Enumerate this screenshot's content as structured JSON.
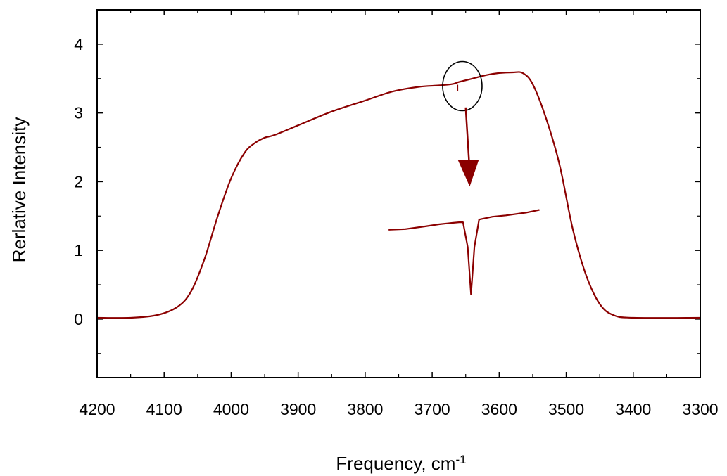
{
  "chart_data": {
    "type": "line",
    "title": "",
    "xlabel": "Frequency, cm",
    "xlabel_superscript": "-1",
    "ylabel": "Rerlative Intensity",
    "xlim": [
      4200,
      3300
    ],
    "ylim": [
      -0.85,
      4.5
    ],
    "x_reversed": true,
    "grid": false,
    "x_ticks": [
      4200,
      4100,
      4000,
      3900,
      3800,
      3700,
      3600,
      3500,
      3400,
      3300
    ],
    "x_tick_labels": [
      "4200",
      "4100",
      "4000",
      "3900",
      "3800",
      "3700",
      "3600",
      "3500",
      "3400",
      "3300"
    ],
    "y_ticks": [
      0,
      1,
      2,
      3,
      4
    ],
    "y_tick_labels": [
      "0",
      "1",
      "2",
      "3",
      "4"
    ],
    "line_color": "#8b0000",
    "annotation_color": "#000000",
    "series": [
      {
        "x": [
          4200,
          4150,
          4110,
          4080,
          4060,
          4040,
          4020,
          4000,
          3980,
          3965,
          3950,
          3935,
          3900,
          3850,
          3800,
          3760,
          3720,
          3690,
          3670,
          3660,
          3640,
          3620,
          3600,
          3580,
          3565,
          3550,
          3530,
          3510,
          3490,
          3470,
          3450,
          3430,
          3400,
          3300
        ],
        "y": [
          0.02,
          0.02,
          0.06,
          0.18,
          0.4,
          0.87,
          1.5,
          2.05,
          2.42,
          2.56,
          2.64,
          2.68,
          2.82,
          3.02,
          3.18,
          3.31,
          3.38,
          3.4,
          3.42,
          3.45,
          3.5,
          3.55,
          3.58,
          3.59,
          3.58,
          3.42,
          2.92,
          2.25,
          1.3,
          0.63,
          0.22,
          0.06,
          0.02,
          0.02
        ]
      }
    ],
    "inset": {
      "description_in_picture": "magnified dip",
      "x": [
        3765,
        3740,
        3710,
        3690,
        3670,
        3660,
        3654,
        3647,
        3642,
        3637,
        3630,
        3610,
        3590,
        3560,
        3540
      ],
      "y": [
        1.3,
        1.31,
        1.35,
        1.38,
        1.4,
        1.41,
        1.41,
        1.05,
        0.36,
        1.05,
        1.45,
        1.49,
        1.51,
        1.55,
        1.59
      ]
    }
  }
}
